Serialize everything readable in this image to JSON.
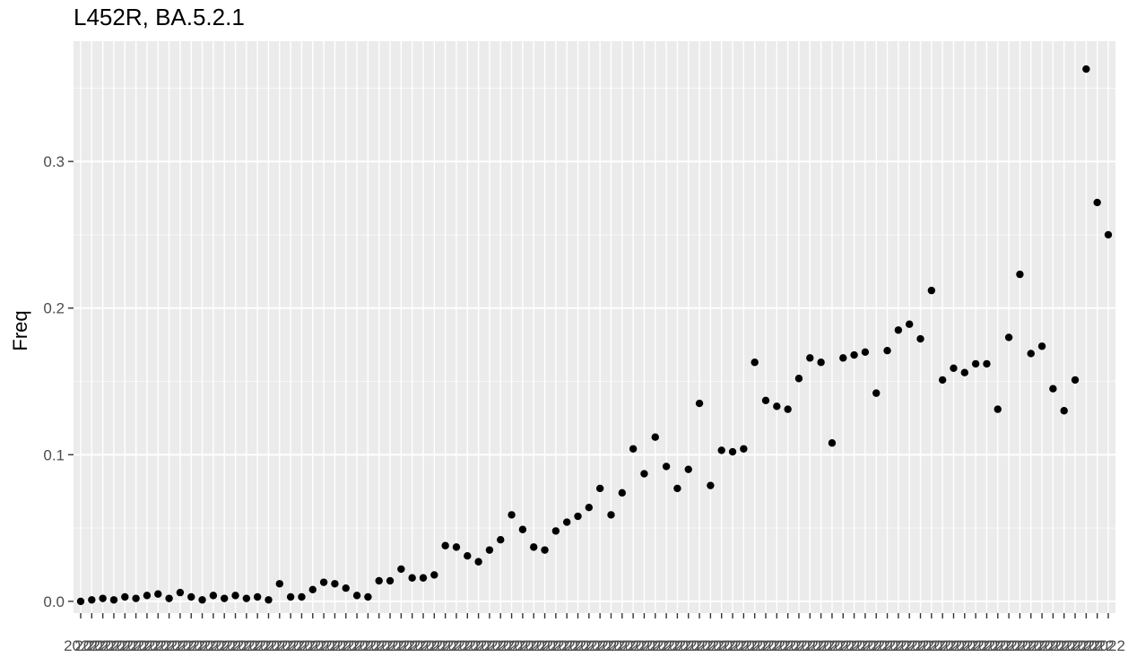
{
  "chart_data": {
    "type": "scatter",
    "title": "L452R, BA.5.2.1",
    "xlabel": "",
    "ylabel": "Freq",
    "ylim": [
      -0.008,
      0.382
    ],
    "yticks": [
      0.0,
      0.1,
      0.2,
      0.3
    ],
    "ytick_labels": [
      "0.0",
      "0.1",
      "0.2",
      "0.3"
    ],
    "grid": true,
    "legend": "none",
    "point_color": "#000000",
    "panel_color": "#ebebeb",
    "x_tick_label": "2022",
    "y": [
      0.0,
      0.001,
      0.002,
      0.001,
      0.003,
      0.002,
      0.004,
      0.005,
      0.002,
      0.006,
      0.003,
      0.001,
      0.004,
      0.002,
      0.004,
      0.002,
      0.003,
      0.001,
      0.012,
      0.003,
      0.003,
      0.008,
      0.013,
      0.012,
      0.009,
      0.004,
      0.003,
      0.014,
      0.014,
      0.022,
      0.016,
      0.016,
      0.018,
      0.038,
      0.037,
      0.031,
      0.027,
      0.035,
      0.042,
      0.059,
      0.049,
      0.037,
      0.035,
      0.048,
      0.054,
      0.058,
      0.064,
      0.077,
      0.059,
      0.074,
      0.104,
      0.087,
      0.112,
      0.092,
      0.077,
      0.09,
      0.135,
      0.079,
      0.103,
      0.102,
      0.104,
      0.163,
      0.137,
      0.133,
      0.131,
      0.152,
      0.166,
      0.163,
      0.108,
      0.166,
      0.168,
      0.17,
      0.142,
      0.171,
      0.185,
      0.189,
      0.179,
      0.212,
      0.151,
      0.159,
      0.156,
      0.162,
      0.162,
      0.131,
      0.18,
      0.223,
      0.169,
      0.174,
      0.145,
      0.13,
      0.151,
      0.363,
      0.272,
      0.25
    ]
  }
}
